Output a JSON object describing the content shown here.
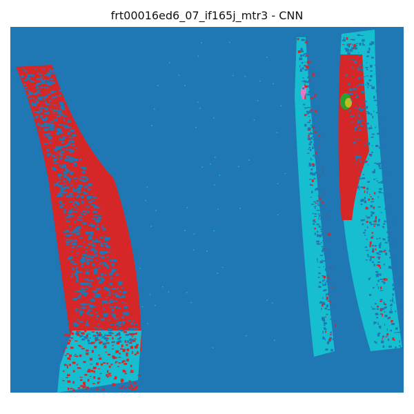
{
  "figure": {
    "title": "frt00016ed6_07_if165j_mtr3 - CNN"
  },
  "classification_map": {
    "description_colors": {
      "background_class": "#1f77b4",
      "class_red": "#d62728",
      "class_cyan": "#17becf",
      "class_green": "#2ca02c",
      "class_olive": "#bcbd22",
      "class_pink": "#e377c2"
    }
  }
}
